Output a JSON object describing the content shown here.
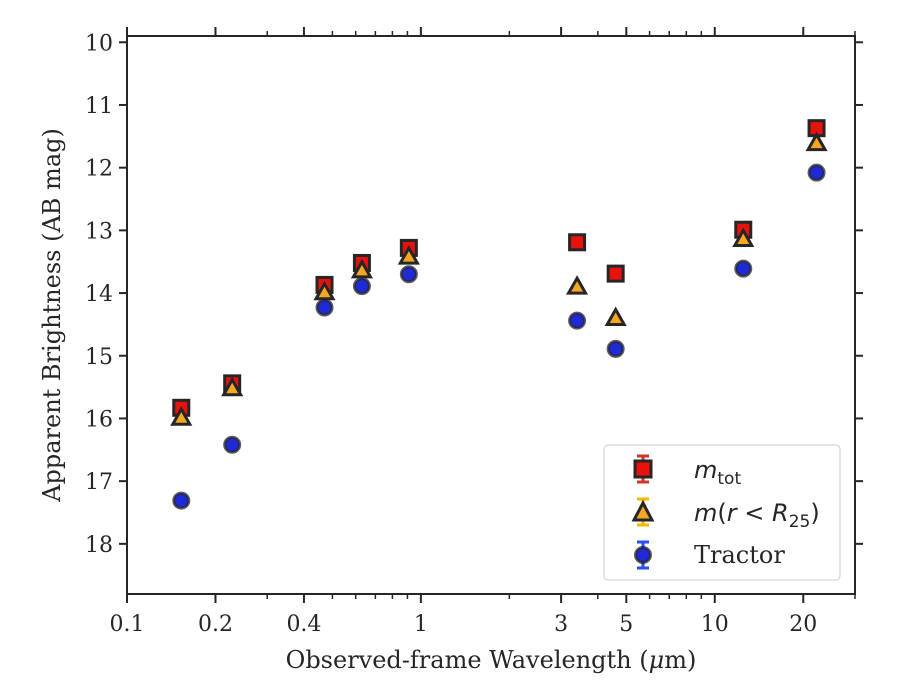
{
  "chart_data": {
    "type": "scatter",
    "xlabel_parts": [
      "Observed-frame Wavelength (",
      "μ",
      "m)"
    ],
    "ylabel": "Apparent Brightness (AB mag)",
    "xscale": "log",
    "xlim": [
      0.1,
      30
    ],
    "ylim": [
      18.8,
      9.9
    ],
    "y_inverted": true,
    "grid": false,
    "legend_position": "lower-right",
    "x_ticks": [
      {
        "value": 0.1,
        "label": "0.1"
      },
      {
        "value": 0.2,
        "label": "0.2"
      },
      {
        "value": 0.4,
        "label": "0.4"
      },
      {
        "value": 1,
        "label": "1"
      },
      {
        "value": 3,
        "label": "3"
      },
      {
        "value": 5,
        "label": "5"
      },
      {
        "value": 10,
        "label": "10"
      },
      {
        "value": 20,
        "label": "20"
      }
    ],
    "y_ticks": [
      {
        "value": 10,
        "label": "10"
      },
      {
        "value": 11,
        "label": "11"
      },
      {
        "value": 12,
        "label": "12"
      },
      {
        "value": 13,
        "label": "13"
      },
      {
        "value": 14,
        "label": "14"
      },
      {
        "value": 15,
        "label": "15"
      },
      {
        "value": 16,
        "label": "16"
      },
      {
        "value": 17,
        "label": "17"
      },
      {
        "value": 18,
        "label": "18"
      }
    ],
    "series": [
      {
        "legend_parts": [
          "m",
          "tot"
        ],
        "marker": "square",
        "color": "#e8120c",
        "error_color": "#d0342c",
        "x": [
          0.153,
          0.228,
          0.47,
          0.63,
          0.91,
          3.4,
          4.6,
          12.5,
          22.2
        ],
        "y": [
          15.83,
          15.44,
          13.87,
          13.52,
          13.28,
          13.19,
          13.69,
          12.99,
          11.37
        ]
      },
      {
        "legend_parts": [
          "m",
          "(",
          "r",
          " < ",
          "R",
          "25",
          ")"
        ],
        "marker": "triangle",
        "color": "#f5a623",
        "error_color": "#f5b800",
        "x": [
          0.153,
          0.228,
          0.47,
          0.63,
          0.91,
          3.4,
          4.6,
          12.5,
          22.2
        ],
        "y": [
          15.98,
          15.51,
          13.98,
          13.63,
          13.41,
          13.89,
          14.39,
          13.13,
          11.6
        ]
      },
      {
        "legend_parts": [
          "Tractor"
        ],
        "marker": "circle",
        "color": "#1f2ad6",
        "error_color": "#2a4df5",
        "x": [
          0.153,
          0.228,
          0.47,
          0.63,
          0.91,
          3.4,
          4.6,
          12.5,
          22.2
        ],
        "y": [
          17.31,
          16.42,
          14.23,
          13.89,
          13.7,
          14.44,
          14.89,
          13.61,
          12.08
        ]
      }
    ],
    "colors": {
      "marker_edge": "#262626",
      "axis": "#262626"
    }
  }
}
